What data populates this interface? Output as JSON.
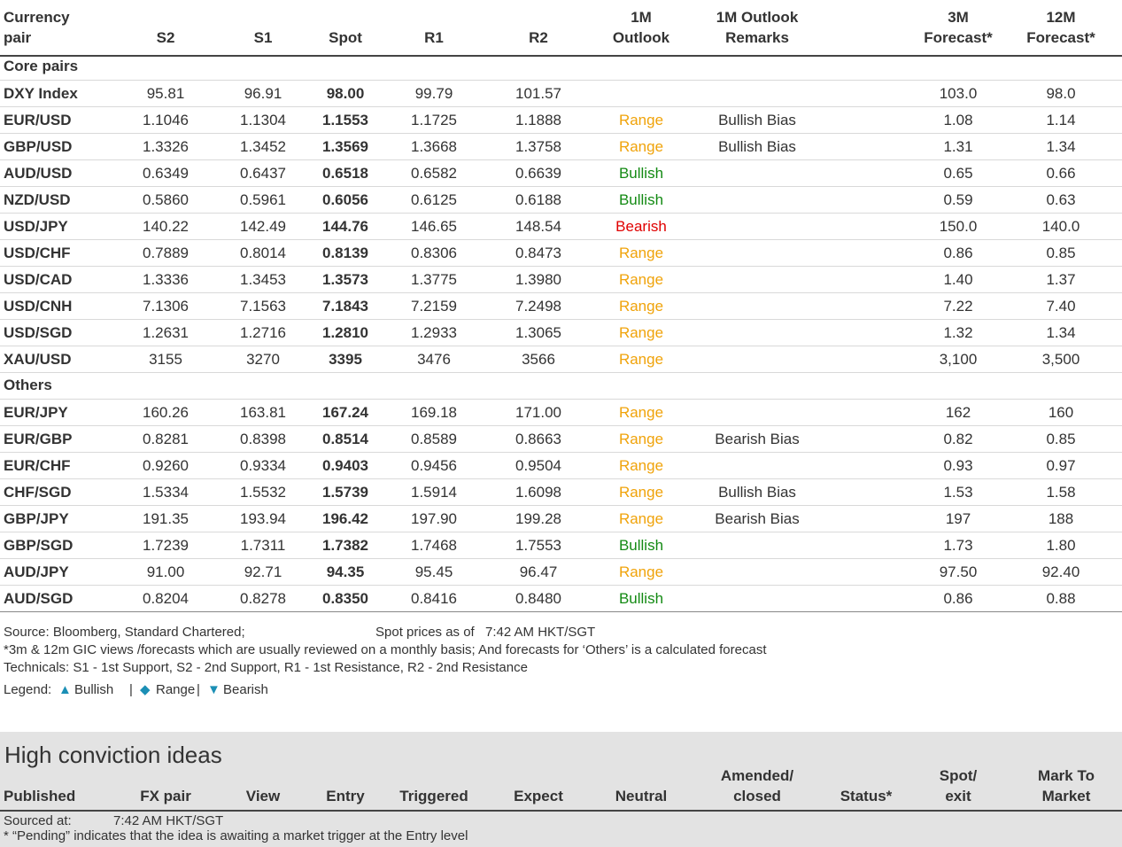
{
  "table": {
    "columns": [
      [
        "Currency",
        "pair"
      ],
      [
        "S2"
      ],
      [
        "S1"
      ],
      [
        "Spot"
      ],
      [
        "R1"
      ],
      [
        "R2"
      ],
      [
        "1M",
        "Outlook"
      ],
      [
        "1M Outlook",
        "Remarks"
      ],
      [
        "3M",
        "Forecast*"
      ],
      [
        "12M",
        "Forecast*"
      ]
    ],
    "outlook_colors": {
      "Range": "#f0a30a",
      "Bullish": "#138a13",
      "Bearish": "#e00000"
    },
    "sections": [
      {
        "title": "Core pairs",
        "rows": [
          [
            "DXY Index",
            "95.81",
            "96.91",
            "98.00",
            "99.79",
            "101.57",
            null,
            null,
            "103.0",
            "98.0"
          ],
          [
            "EUR/USD",
            "1.1046",
            "1.1304",
            "1.1553",
            "1.1725",
            "1.1888",
            "Range",
            "Bullish Bias",
            "1.08",
            "1.14"
          ],
          [
            "GBP/USD",
            "1.3326",
            "1.3452",
            "1.3569",
            "1.3668",
            "1.3758",
            "Range",
            "Bullish Bias",
            "1.31",
            "1.34"
          ],
          [
            "AUD/USD",
            "0.6349",
            "0.6437",
            "0.6518",
            "0.6582",
            "0.6639",
            "Bullish",
            null,
            "0.65",
            "0.66"
          ],
          [
            "NZD/USD",
            "0.5860",
            "0.5961",
            "0.6056",
            "0.6125",
            "0.6188",
            "Bullish",
            null,
            "0.59",
            "0.63"
          ],
          [
            "USD/JPY",
            "140.22",
            "142.49",
            "144.76",
            "146.65",
            "148.54",
            "Bearish",
            null,
            "150.0",
            "140.0"
          ],
          [
            "USD/CHF",
            "0.7889",
            "0.8014",
            "0.8139",
            "0.8306",
            "0.8473",
            "Range",
            null,
            "0.86",
            "0.85"
          ],
          [
            "USD/CAD",
            "1.3336",
            "1.3453",
            "1.3573",
            "1.3775",
            "1.3980",
            "Range",
            null,
            "1.40",
            "1.37"
          ],
          [
            "USD/CNH",
            "7.1306",
            "7.1563",
            "7.1843",
            "7.2159",
            "7.2498",
            "Range",
            null,
            "7.22",
            "7.40"
          ],
          [
            "USD/SGD",
            "1.2631",
            "1.2716",
            "1.2810",
            "1.2933",
            "1.3065",
            "Range",
            null,
            "1.32",
            "1.34"
          ],
          [
            "XAU/USD",
            "3155",
            "3270",
            "3395",
            "3476",
            "3566",
            "Range",
            null,
            "3,100",
            "3,500"
          ]
        ]
      },
      {
        "title": "Others",
        "rows": [
          [
            "EUR/JPY",
            "160.26",
            "163.81",
            "167.24",
            "169.18",
            "171.00",
            "Range",
            null,
            "162",
            "160"
          ],
          [
            "EUR/GBP",
            "0.8281",
            "0.8398",
            "0.8514",
            "0.8589",
            "0.8663",
            "Range",
            "Bearish Bias",
            "0.82",
            "0.85"
          ],
          [
            "EUR/CHF",
            "0.9260",
            "0.9334",
            "0.9403",
            "0.9456",
            "0.9504",
            "Range",
            null,
            "0.93",
            "0.97"
          ],
          [
            "CHF/SGD",
            "1.5334",
            "1.5532",
            "1.5739",
            "1.5914",
            "1.6098",
            "Range",
            "Bullish Bias",
            "1.53",
            "1.58"
          ],
          [
            "GBP/JPY",
            "191.35",
            "193.94",
            "196.42",
            "197.90",
            "199.28",
            "Range",
            "Bearish Bias",
            "197",
            "188"
          ],
          [
            "GBP/SGD",
            "1.7239",
            "1.7311",
            "1.7382",
            "1.7468",
            "1.7553",
            "Bullish",
            null,
            "1.73",
            "1.80"
          ],
          [
            "AUD/JPY",
            "91.00",
            "92.71",
            "94.35",
            "95.45",
            "96.47",
            "Range",
            null,
            "97.50",
            "92.40"
          ],
          [
            "AUD/SGD",
            "0.8204",
            "0.8278",
            "0.8350",
            "0.8416",
            "0.8480",
            "Bullish",
            null,
            "0.86",
            "0.88"
          ]
        ]
      }
    ]
  },
  "notes": {
    "source": "Source: Bloomberg, Standard Chartered;",
    "spot_label": "Spot prices as of",
    "spot_time": "7:42 AM HKT/SGT",
    "forecast_note": "*3m & 12m GIC views /forecasts which are usually reviewed on a monthly basis; And forecasts for ‘Others’ is a calculated forecast",
    "technicals": "Technicals: S1 - 1st Support, S2 - 2nd Support, R1 - 1st Resistance, R2 - 2nd Resistance",
    "legend": {
      "label": "Legend:",
      "separator": "|",
      "symbol_color": "#1b8fb5",
      "items": [
        {
          "symbol": "▲",
          "text": "Bullish"
        },
        {
          "symbol": "◆",
          "text": "Range"
        },
        {
          "symbol": "▼",
          "text": "Bearish"
        }
      ]
    }
  },
  "ideas": {
    "title": "High conviction ideas",
    "columns": [
      [
        "Published"
      ],
      [
        "FX pair"
      ],
      [
        "View"
      ],
      [
        "Entry"
      ],
      [
        "Triggered"
      ],
      [
        "Expect"
      ],
      [
        "Neutral"
      ],
      [
        "Amended/",
        "closed"
      ],
      [
        "Status*"
      ],
      [
        "Spot/",
        "exit"
      ],
      [
        "Mark To",
        "Market"
      ]
    ],
    "sourced_label": "Sourced at:",
    "sourced_time": "7:42 AM HKT/SGT",
    "footnote": "* “Pending” indicates that the idea is awaiting a market trigger at the Entry level"
  }
}
